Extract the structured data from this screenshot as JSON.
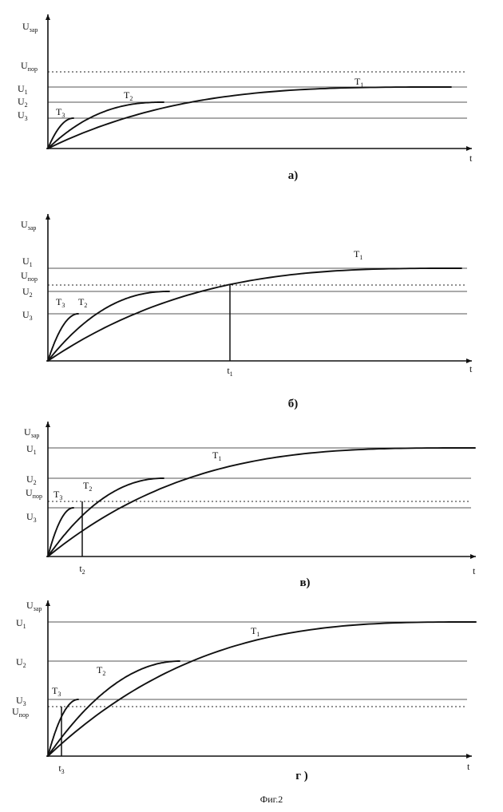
{
  "figure": {
    "caption": "Фиг.2",
    "axis_labels": {
      "y_main": "U",
      "y_sub": "зар",
      "x": "t"
    },
    "panels": [
      {
        "id": "a",
        "letter": "а)",
        "levels": [
          "U1",
          "U2",
          "U3"
        ],
        "threshold": {
          "main": "U",
          "sub": "пор"
        },
        "curves": [
          "T1",
          "T2",
          "T3"
        ],
        "marker": null
      },
      {
        "id": "b",
        "letter": "б)",
        "levels": [
          "U1",
          "U2",
          "U3"
        ],
        "threshold": {
          "main": "U",
          "sub": "пор"
        },
        "curves": [
          "T1",
          "T2",
          "T3"
        ],
        "marker": "t1"
      },
      {
        "id": "v",
        "letter": "в)",
        "levels": [
          "U1",
          "U2",
          "U3"
        ],
        "threshold": {
          "main": "U",
          "sub": "пор"
        },
        "curves": [
          "T1",
          "T2",
          "T3"
        ],
        "marker": "t2"
      },
      {
        "id": "g",
        "letter": "г )",
        "levels": [
          "U1",
          "U2",
          "U3"
        ],
        "threshold": {
          "main": "U",
          "sub": "пор"
        },
        "curves": [
          "T1",
          "T2",
          "T3"
        ],
        "marker": "t3"
      }
    ]
  }
}
